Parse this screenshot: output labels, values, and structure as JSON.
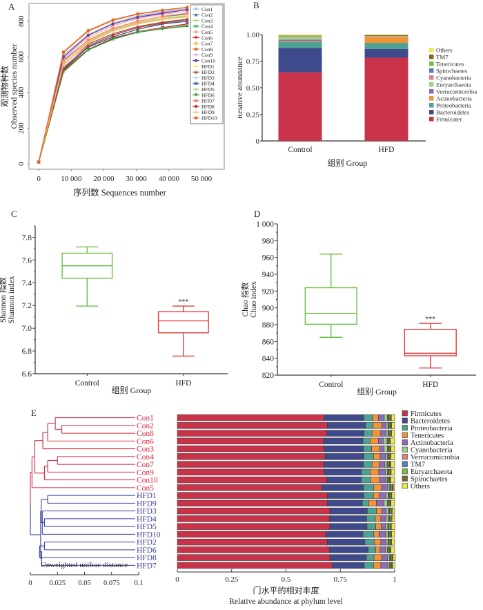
{
  "figure": {
    "panels": [
      "A",
      "B",
      "C",
      "D",
      "E"
    ]
  },
  "chart_data": [
    {
      "id": "A",
      "type": "line",
      "title": "",
      "panel_label": "A",
      "xlabel": "序列数 Sequences number",
      "ylabel_cn": "观测物种数",
      "ylabel_en": "Observed species number",
      "xlim": [
        -3000,
        57000
      ],
      "ylim": [
        -30,
        900
      ],
      "xticks": [
        0,
        10000,
        20000,
        30000,
        40000,
        50000
      ],
      "xtick_labels": [
        "0",
        "10 000",
        "20 000",
        "30 000",
        "40 000",
        "50 000"
      ],
      "yticks": [
        0,
        200,
        400,
        600,
        800
      ],
      "ytick_labels": [
        "0",
        "200",
        "400",
        "600",
        "800"
      ],
      "legend_position": "top-right",
      "x": [
        0,
        7600,
        15200,
        22800,
        30400,
        38000,
        45600
      ],
      "series": [
        {
          "name": "Con1",
          "color": "#9ecae1",
          "marker": "circle",
          "values": [
            10,
            610,
            725,
            790,
            830,
            855,
            870
          ]
        },
        {
          "name": "Con2",
          "color": "#3f6fa5",
          "marker": "triangle",
          "values": [
            10,
            580,
            695,
            760,
            800,
            825,
            840
          ]
        },
        {
          "name": "Con3",
          "color": "#a6d96a",
          "marker": "plus",
          "values": [
            10,
            555,
            685,
            750,
            790,
            815,
            830
          ]
        },
        {
          "name": "Con4",
          "color": "#4daf4a",
          "marker": "x",
          "values": [
            10,
            520,
            640,
            700,
            740,
            762,
            778
          ]
        },
        {
          "name": "Con5",
          "color": "#f4a6a6",
          "marker": "circle",
          "values": [
            10,
            590,
            710,
            775,
            815,
            840,
            855
          ]
        },
        {
          "name": "Con6",
          "color": "#d7263d",
          "marker": "down",
          "values": [
            10,
            525,
            642,
            705,
            742,
            765,
            785
          ]
        },
        {
          "name": "Con7",
          "color": "#fdbf6f",
          "marker": "square",
          "values": [
            10,
            560,
            690,
            755,
            795,
            820,
            835
          ]
        },
        {
          "name": "Con8",
          "color": "#f26b1d",
          "marker": "circle",
          "values": [
            10,
            625,
            745,
            805,
            840,
            862,
            878
          ]
        },
        {
          "name": "Con9",
          "color": "#c9a0dc",
          "marker": "plus",
          "values": [
            10,
            600,
            720,
            785,
            825,
            850,
            868
          ]
        },
        {
          "name": "Con10",
          "color": "#6a3d9a",
          "marker": "circle",
          "values": [
            10,
            600,
            722,
            785,
            822,
            845,
            865
          ]
        },
        {
          "name": "HFD1",
          "color": "#f7f08a",
          "marker": "circle",
          "values": [
            10,
            570,
            700,
            762,
            800,
            822,
            835
          ]
        },
        {
          "name": "HFD2",
          "color": "#a0522d",
          "marker": "triangle",
          "values": [
            10,
            540,
            672,
            730,
            770,
            795,
            812
          ]
        },
        {
          "name": "HFD3",
          "color": "#b9d3ee",
          "marker": "plus",
          "values": [
            10,
            545,
            665,
            725,
            765,
            790,
            805
          ]
        },
        {
          "name": "HFD4",
          "color": "#2c5d8f",
          "marker": "x",
          "values": [
            10,
            530,
            655,
            712,
            755,
            785,
            800
          ]
        },
        {
          "name": "HFD5",
          "color": "#b8e0a0",
          "marker": "circle",
          "values": [
            10,
            515,
            638,
            698,
            740,
            760,
            775
          ]
        },
        {
          "name": "HFD6",
          "color": "#2f8f2f",
          "marker": "down",
          "values": [
            10,
            518,
            640,
            700,
            738,
            758,
            772
          ]
        },
        {
          "name": "HFD7",
          "color": "#f08a8a",
          "marker": "square",
          "values": [
            10,
            575,
            695,
            760,
            800,
            828,
            845
          ]
        },
        {
          "name": "HFD8",
          "color": "#c0392b",
          "marker": "circle",
          "values": [
            10,
            535,
            660,
            722,
            765,
            790,
            810
          ]
        },
        {
          "name": "HFD9",
          "color": "#f9b96e",
          "marker": "plus",
          "values": [
            10,
            560,
            680,
            745,
            785,
            810,
            825
          ]
        },
        {
          "name": "HFD10",
          "color": "#e8641e",
          "marker": "circle",
          "values": [
            10,
            628,
            748,
            808,
            842,
            862,
            878
          ]
        }
      ]
    },
    {
      "id": "B",
      "type": "bar",
      "stacked": true,
      "panel_label": "B",
      "xlabel": "组别 Group",
      "ylabel_cn": "相对丰度",
      "ylabel_en": "Relative abundance",
      "ylim": [
        0,
        1
      ],
      "yticks": [
        0,
        0.25,
        0.5,
        0.75,
        1.0
      ],
      "ytick_labels": [
        "0",
        "0.25",
        "0.50",
        "0.75",
        "1.00"
      ],
      "categories": [
        "Control",
        "HFD"
      ],
      "legend_position": "right",
      "legend_order": [
        "Others",
        "TM7",
        "Tenericutes",
        "Spirochaetes",
        "Cyanobacteria",
        "Euryarchaeota",
        "Verrucomicrobia",
        "Actinobacteria",
        "Proteobacteria",
        "Bacteroidetes",
        "Firmicuter"
      ],
      "series": [
        {
          "name": "Firmicuter",
          "color": "#c8334a",
          "values": [
            0.645,
            0.782
          ]
        },
        {
          "name": "Bacteroidetes",
          "color": "#3f4a8c",
          "values": [
            0.228,
            0.082
          ]
        },
        {
          "name": "Proteobacteria",
          "color": "#4da393",
          "values": [
            0.06,
            0.058
          ]
        },
        {
          "name": "Actinobacteria",
          "color": "#f39237",
          "values": [
            0.008,
            0.055
          ]
        },
        {
          "name": "Verrucomicrobia",
          "color": "#8e6bb3",
          "values": [
            0.01,
            0.002
          ]
        },
        {
          "name": "Euryarchaeota",
          "color": "#9ccf8c",
          "values": [
            0.025,
            0.004
          ]
        },
        {
          "name": "Cyanobacteria",
          "color": "#e57d7d",
          "values": [
            0.004,
            0.002
          ]
        },
        {
          "name": "Spirochaetes",
          "color": "#4f7fbf",
          "values": [
            0.002,
            0.001
          ]
        },
        {
          "name": "Tenericutes",
          "color": "#7cbf3a",
          "values": [
            0.006,
            0.001
          ]
        },
        {
          "name": "TM7",
          "color": "#7a6a2a",
          "values": [
            0.004,
            0.009
          ]
        },
        {
          "name": "Others",
          "color": "#eee84a",
          "values": [
            0.008,
            0.004
          ]
        }
      ]
    },
    {
      "id": "C",
      "type": "box",
      "panel_label": "C",
      "xlabel": "组别 Group",
      "ylabel_cn": "Shannon 指数",
      "ylabel_en": "Shannon index",
      "ylim": [
        6.6,
        7.9
      ],
      "yticks": [
        6.6,
        6.8,
        7.0,
        7.2,
        7.4,
        7.6,
        7.8
      ],
      "ytick_labels": [
        "6.6",
        "6.8",
        "7.0",
        "7.2",
        "7.4",
        "7.6",
        "7.8"
      ],
      "categories": [
        "Control",
        "HFD"
      ],
      "boxes": [
        {
          "name": "Control",
          "color": "#6abf45",
          "min": 7.195,
          "q1": 7.44,
          "median": 7.55,
          "q3": 7.66,
          "max": 7.715,
          "annotation": ""
        },
        {
          "name": "HFD",
          "color": "#e8393b",
          "min": 6.755,
          "q1": 6.96,
          "median": 7.065,
          "q3": 7.145,
          "max": 7.195,
          "annotation": "***"
        }
      ]
    },
    {
      "id": "D",
      "type": "box",
      "panel_label": "D",
      "xlabel": "组别 Group",
      "ylabel_cn": "Chao 指数",
      "ylabel_en": "Chao index",
      "ylim": [
        820,
        1000
      ],
      "yticks": [
        820,
        840,
        860,
        880,
        900,
        920,
        940,
        960,
        980,
        1000
      ],
      "ytick_labels": [
        "820",
        "840",
        "860",
        "880",
        "900",
        "920",
        "940",
        "960",
        "980",
        "1 000"
      ],
      "categories": [
        "Control",
        "HFD"
      ],
      "boxes": [
        {
          "name": "Control",
          "color": "#6abf45",
          "min": 865,
          "q1": 880.5,
          "median": 893.5,
          "q3": 924,
          "max": 964,
          "annotation": ""
        },
        {
          "name": "HFD",
          "color": "#e8393b",
          "min": 828.5,
          "q1": 843,
          "median": 846,
          "q3": 874.5,
          "max": 881.5,
          "annotation": "***"
        }
      ]
    },
    {
      "id": "E",
      "type": "bar",
      "orientation": "horizontal",
      "stacked": true,
      "panel_label": "E",
      "xlabel_cn": "门水平的相对丰度",
      "xlabel_en": "Relative abundance at phylum level",
      "xlim": [
        0,
        1
      ],
      "xticks": [
        0,
        0.25,
        0.5,
        0.75,
        1
      ],
      "xtick_labels": [
        "0",
        "0.25",
        "0.5",
        "0.75",
        "1"
      ],
      "legend_position": "right",
      "dendrogram": {
        "axis_label": "Unweighted unifrac distance",
        "ticks": [
          0,
          0.025,
          0.05,
          0.075,
          0.1
        ],
        "tick_labels": [
          "0",
          "0.025",
          "0.05",
          "0.075",
          "0.1"
        ],
        "group_colors": {
          "Con": "#d7263d",
          "HFD": "#3a3f9c"
        }
      },
      "categories": [
        "Con1",
        "Con2",
        "Con8",
        "Con6",
        "Con3",
        "Con4",
        "Con7",
        "Con9",
        "Con10",
        "Con5",
        "HFD1",
        "HFD9",
        "HFD3",
        "HFD4",
        "HFD5",
        "HFD10",
        "HFD2",
        "HFD6",
        "HFD8",
        "HFD7"
      ],
      "series": [
        {
          "name": "Firmicutes",
          "color": "#c8334a",
          "values": [
            0.675,
            0.69,
            0.688,
            0.673,
            0.674,
            0.68,
            0.673,
            0.676,
            0.687,
            0.665,
            0.691,
            0.69,
            0.702,
            0.7,
            0.702,
            0.682,
            0.69,
            0.7,
            0.702,
            0.712
          ]
        },
        {
          "name": "Bacteroidetes",
          "color": "#3f4a8c",
          "values": [
            0.183,
            0.176,
            0.171,
            0.181,
            0.182,
            0.178,
            0.183,
            0.171,
            0.159,
            0.192,
            0.167,
            0.161,
            0.172,
            0.171,
            0.171,
            0.172,
            0.173,
            0.178,
            0.168,
            0.148
          ]
        },
        {
          "name": "Proteobacteria",
          "color": "#4da393",
          "values": [
            0.04,
            0.035,
            0.037,
            0.033,
            0.038,
            0.045,
            0.04,
            0.04,
            0.043,
            0.047,
            0.044,
            0.03,
            0.042,
            0.04,
            0.04,
            0.05,
            0.043,
            0.035,
            0.035,
            0.043
          ]
        },
        {
          "name": "Tenericutes",
          "color": "#f39237",
          "values": [
            0.027,
            0.04,
            0.04,
            0.038,
            0.037,
            0.03,
            0.032,
            0.04,
            0.042,
            0.035,
            0.028,
            0.035,
            0.025,
            0.025,
            0.025,
            0.025,
            0.03,
            0.02,
            0.035,
            0.033
          ]
        },
        {
          "name": "Actinobacteria",
          "color": "#8e6bb3",
          "values": [
            0.027,
            0.02,
            0.025,
            0.022,
            0.02,
            0.025,
            0.027,
            0.03,
            0.026,
            0.03,
            0.03,
            0.035,
            0.02,
            0.025,
            0.02,
            0.03,
            0.025,
            0.025,
            0.028,
            0.03
          ]
        },
        {
          "name": "Cyanobacteria",
          "color": "#9ccf8c",
          "values": [
            0.015,
            0.008,
            0.008,
            0.018,
            0.015,
            0.008,
            0.01,
            0.01,
            0.008,
            0.008,
            0.01,
            0.015,
            0.01,
            0.01,
            0.01,
            0.01,
            0.008,
            0.008,
            0.008,
            0.008
          ]
        },
        {
          "name": "Verrucomicrobia",
          "color": "#e57d7d",
          "values": [
            0.003,
            0.003,
            0.003,
            0.003,
            0.003,
            0.003,
            0.003,
            0.003,
            0.003,
            0.003,
            0.003,
            0.003,
            0.003,
            0.003,
            0.003,
            0.003,
            0.003,
            0.003,
            0.003,
            0.003
          ]
        },
        {
          "name": "TM7",
          "color": "#4f7fbf",
          "values": [
            0.003,
            0.003,
            0.003,
            0.003,
            0.003,
            0.003,
            0.003,
            0.003,
            0.003,
            0.003,
            0.003,
            0.003,
            0.003,
            0.003,
            0.003,
            0.003,
            0.003,
            0.003,
            0.003,
            0.003
          ]
        },
        {
          "name": "Euryarchaeota",
          "color": "#7cbf3a",
          "values": [
            0.005,
            0.005,
            0.005,
            0.004,
            0.005,
            0.005,
            0.005,
            0.005,
            0.005,
            0.005,
            0.005,
            0.005,
            0.005,
            0.005,
            0.005,
            0.005,
            0.005,
            0.005,
            0.005,
            0.005
          ]
        },
        {
          "name": "Spirochaetes",
          "color": "#7a6a2a",
          "values": [
            0.007,
            0.006,
            0.006,
            0.005,
            0.006,
            0.006,
            0.007,
            0.006,
            0.006,
            0.006,
            0.006,
            0.006,
            0.007,
            0.006,
            0.006,
            0.006,
            0.006,
            0.006,
            0.006,
            0.006
          ]
        },
        {
          "name": "Others",
          "color": "#eee84a",
          "values": [
            0.015,
            0.014,
            0.014,
            0.02,
            0.017,
            0.017,
            0.017,
            0.016,
            0.018,
            0.006,
            0.013,
            0.017,
            0.011,
            0.012,
            0.016,
            0.014,
            0.014,
            0.017,
            0.01,
            0.01
          ]
        }
      ]
    }
  ]
}
